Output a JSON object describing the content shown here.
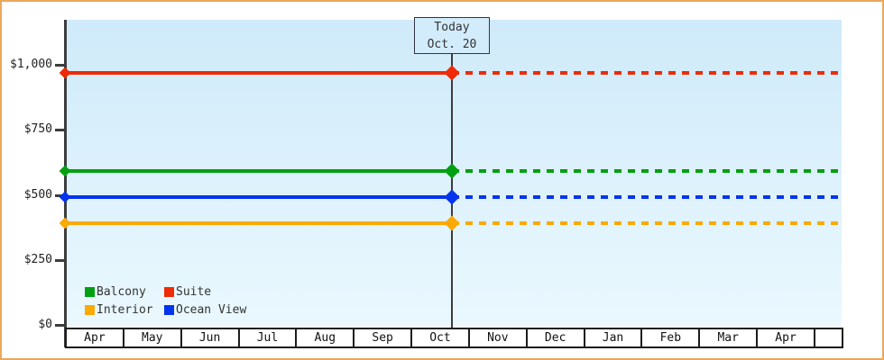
{
  "frame": {
    "border_color": "#eaa85c",
    "background": "#ffffff"
  },
  "plot": {
    "gradient_top": "#cfeafa",
    "gradient_bottom": "#eaf8fe",
    "axis_color": "#3c3c3e"
  },
  "chart_data": {
    "type": "line",
    "title": "",
    "xlabel": "",
    "ylabel": "",
    "ylim": [
      0,
      1000
    ],
    "grid": false,
    "legend_position": "bottom-left",
    "yticks": [
      {
        "value": 1000,
        "label": "$1,000"
      },
      {
        "value": 750,
        "label": "$750"
      },
      {
        "value": 500,
        "label": "$500"
      },
      {
        "value": 250,
        "label": "$250"
      },
      {
        "value": 0,
        "label": "$0"
      }
    ],
    "x_categories": [
      "Apr",
      "May",
      "Jun",
      "Jul",
      "Aug",
      "Sep",
      "Oct",
      "Nov",
      "Dec",
      "Jan",
      "Feb",
      "Mar",
      "Apr",
      ""
    ],
    "today": {
      "label": "Today",
      "date_label": "Oct. 20",
      "month_index": 6,
      "day": 20
    },
    "series": [
      {
        "name": "Balcony",
        "value": 590,
        "color": "#00a011",
        "style_before_today": "solid",
        "style_after_today": "dashed"
      },
      {
        "name": "Suite",
        "value": 970,
        "color": "#ee2b06",
        "style_before_today": "solid",
        "style_after_today": "dashed"
      },
      {
        "name": "Interior",
        "value": 390,
        "color": "#fca902",
        "style_before_today": "solid",
        "style_after_today": "dashed"
      },
      {
        "name": "Ocean View",
        "value": 490,
        "color": "#0435ee",
        "style_before_today": "solid",
        "style_after_today": "dashed"
      }
    ]
  }
}
